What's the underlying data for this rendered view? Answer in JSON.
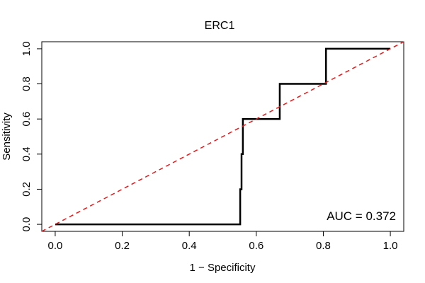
{
  "chart_data": {
    "type": "line",
    "title": "ERC1",
    "xlabel": "1 − Specificity",
    "ylabel": "Sensitivity",
    "xlim": [
      -0.04,
      1.04
    ],
    "ylim": [
      -0.04,
      1.04
    ],
    "x_ticks": [
      0.0,
      0.2,
      0.4,
      0.6,
      0.8,
      1.0
    ],
    "x_tick_labels": [
      "0.0",
      "0.2",
      "0.4",
      "0.6",
      "0.8",
      "1.0"
    ],
    "y_ticks": [
      0.0,
      0.2,
      0.4,
      0.6,
      0.8,
      1.0
    ],
    "y_tick_labels": [
      "0.0",
      "0.2",
      "0.4",
      "0.6",
      "0.8",
      "1.0"
    ],
    "grid": false,
    "series": [
      {
        "color": "#000000",
        "style": "solid",
        "x": [
          0.0,
          0.552,
          0.552,
          0.556,
          0.556,
          0.56,
          0.56,
          0.565,
          0.565,
          0.67,
          0.67,
          0.808,
          0.808,
          1.0
        ],
        "y": [
          0.0,
          0.0,
          0.2,
          0.2,
          0.4,
          0.4,
          0.6,
          0.6,
          0.6,
          0.6,
          0.8,
          0.8,
          1.0,
          1.0
        ]
      },
      {
        "color": "#e41a1c",
        "style": "dashed",
        "x": [
          -0.04,
          1.04
        ],
        "y": [
          -0.04,
          1.04
        ]
      }
    ],
    "annotation": "AUC = 0.372"
  }
}
